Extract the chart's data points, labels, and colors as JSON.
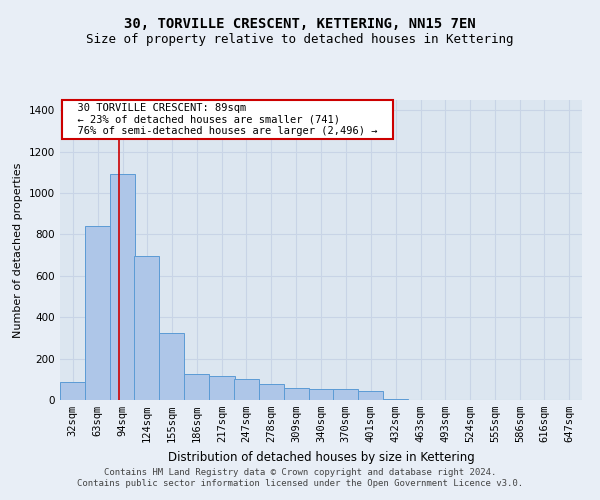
{
  "title": "30, TORVILLE CRESCENT, KETTERING, NN15 7EN",
  "subtitle": "Size of property relative to detached houses in Kettering",
  "xlabel": "Distribution of detached houses by size in Kettering",
  "ylabel": "Number of detached properties",
  "footer_line1": "Contains HM Land Registry data © Crown copyright and database right 2024.",
  "footer_line2": "Contains public sector information licensed under the Open Government Licence v3.0.",
  "annotation_line1": "30 TORVILLE CRESCENT: 89sqm",
  "annotation_line2": "← 23% of detached houses are smaller (741)",
  "annotation_line3": "76% of semi-detached houses are larger (2,496) →",
  "bar_centers": [
    32,
    63,
    94,
    124,
    155,
    186,
    217,
    247,
    278,
    309,
    340,
    370,
    401,
    432,
    463,
    493,
    524,
    555,
    586,
    616,
    647
  ],
  "bar_heights": [
    85,
    840,
    1090,
    695,
    325,
    125,
    115,
    100,
    75,
    60,
    55,
    55,
    45,
    5,
    0,
    0,
    0,
    0,
    0,
    0,
    0
  ],
  "bin_width": 31,
  "bar_color": "#aec6e8",
  "bar_edge_color": "#5b9bd5",
  "vline_color": "#cc0000",
  "vline_x": 89,
  "annotation_box_color": "#cc0000",
  "background_color": "#e8eef6",
  "plot_bg_color": "#dce6f0",
  "grid_color": "#c8d4e6",
  "ylim": [
    0,
    1450
  ],
  "yticks": [
    0,
    200,
    400,
    600,
    800,
    1000,
    1200,
    1400
  ],
  "title_fontsize": 10,
  "subtitle_fontsize": 9,
  "xlabel_fontsize": 8.5,
  "ylabel_fontsize": 8,
  "tick_fontsize": 7.5,
  "annotation_fontsize": 7.5,
  "footer_fontsize": 6.5
}
